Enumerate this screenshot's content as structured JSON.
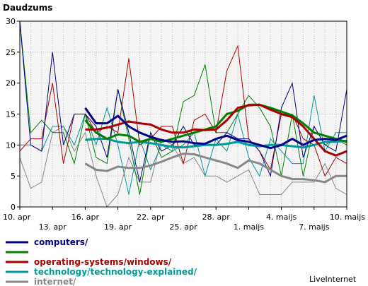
{
  "chart_data": {
    "type": "line",
    "title": "",
    "ylabel": "Daudzums",
    "xlabel": "",
    "ylim": [
      0,
      30
    ],
    "yticks": [
      0,
      5,
      10,
      15,
      20,
      25,
      30
    ],
    "grid": true,
    "legend_position": "bottom-left",
    "x_tick_labels": [
      "10. apr",
      "13. apr",
      "16. apr",
      "19. apr",
      "22. apr",
      "25. apr",
      "28. apr",
      "1. maijs",
      "4. maijs",
      "7. maijs",
      "10. maijs"
    ],
    "x_tick_days": [
      0,
      3,
      6,
      9,
      12,
      15,
      18,
      21,
      24,
      27,
      30
    ],
    "x_days": [
      0,
      1,
      2,
      3,
      4,
      5,
      6,
      7,
      8,
      9,
      10,
      11,
      12,
      13,
      14,
      15,
      16,
      17,
      18,
      19,
      20,
      21,
      22,
      23,
      24,
      25,
      26,
      27,
      28,
      29,
      30
    ],
    "series": [
      {
        "name": "computers/",
        "color": "#00008b",
        "raw": [
          30,
          10,
          9,
          25,
          10,
          15,
          15,
          13,
          8,
          19,
          12,
          4,
          12,
          9,
          10,
          13,
          10,
          10,
          10,
          12,
          11,
          11,
          9,
          5,
          16,
          20,
          8,
          13,
          10,
          9,
          19
        ],
        "smooth": [
          null,
          null,
          null,
          null,
          null,
          null,
          16,
          13.5,
          13.5,
          14.7,
          13,
          12,
          11.3,
          10.8,
          10.5,
          10.6,
          10.3,
          10.2,
          11,
          11.5,
          10.8,
          10.5,
          10,
          9.5,
          10,
          11,
          10,
          10.8,
          11,
          10.8,
          11.5
        ]
      },
      {
        "name": "",
        "color": "#008000",
        "raw": [
          30,
          12,
          14,
          12,
          12,
          7,
          15,
          8,
          7,
          19,
          11,
          2,
          12,
          8,
          9,
          17,
          18,
          23,
          12,
          12,
          15,
          18,
          16,
          13,
          5,
          15,
          5,
          13,
          10,
          11,
          10
        ],
        "smooth": [
          null,
          null,
          null,
          null,
          null,
          null,
          14,
          12,
          11,
          11.7,
          11.5,
          10.5,
          11,
          10.5,
          11,
          11.5,
          12,
          12.5,
          13,
          15,
          15.5,
          16.5,
          16.5,
          16,
          15.4,
          14.8,
          13.5,
          12,
          11.5,
          11,
          10.5
        ]
      },
      {
        "name": "operating-systems/windows/",
        "color": "#aa0000",
        "raw": [
          9,
          11,
          11,
          20,
          7,
          15,
          15,
          12,
          13,
          12,
          24,
          10,
          11,
          13,
          13,
          7,
          14,
          15,
          12,
          22,
          26,
          11,
          9,
          6,
          15,
          15,
          11,
          10,
          5,
          8,
          7
        ],
        "smooth": [
          null,
          null,
          null,
          null,
          null,
          null,
          12.5,
          12.5,
          12.8,
          13.3,
          13.8,
          13.5,
          13.3,
          12.5,
          12,
          12,
          12.5,
          12.4,
          12.5,
          14,
          16,
          16.4,
          16.5,
          15.7,
          15,
          14.5,
          13,
          11,
          9,
          8.3,
          9
        ]
      },
      {
        "name": "technology/technology-explained/",
        "color": "#009999",
        "raw": [
          10,
          10,
          9,
          13,
          13,
          10,
          15,
          10,
          16,
          10,
          2,
          11,
          6,
          10,
          9,
          10,
          12,
          5,
          11,
          9,
          15,
          8,
          5,
          11,
          9,
          7,
          7,
          18,
          9,
          12,
          12
        ],
        "smooth": [
          null,
          null,
          null,
          null,
          null,
          null,
          10.8,
          11,
          11,
          10.5,
          10.3,
          10.5,
          10.3,
          10,
          9.7,
          9.6,
          9.8,
          10,
          10,
          10.2,
          10.5,
          10,
          9.8,
          10,
          10,
          9.8,
          9.6,
          10,
          10.5,
          10.5,
          10.7
        ]
      },
      {
        "name": "internet/",
        "color": "#888888",
        "raw": [
          8,
          3,
          4,
          12,
          13,
          9,
          12,
          5,
          0,
          2,
          8,
          4,
          4,
          11,
          10,
          7,
          8,
          5,
          5,
          4,
          5,
          6,
          2,
          2,
          2,
          4,
          4,
          4,
          7,
          3,
          2
        ],
        "smooth": [
          null,
          null,
          null,
          null,
          null,
          null,
          7,
          6,
          5.8,
          6.5,
          6.3,
          6.3,
          6.7,
          7.3,
          8,
          8.6,
          8.5,
          8,
          7.5,
          7,
          6.3,
          7.5,
          7,
          6,
          5,
          4.5,
          4.5,
          4.3,
          4,
          5,
          5
        ]
      }
    ],
    "watermark": "LiveInternet"
  }
}
